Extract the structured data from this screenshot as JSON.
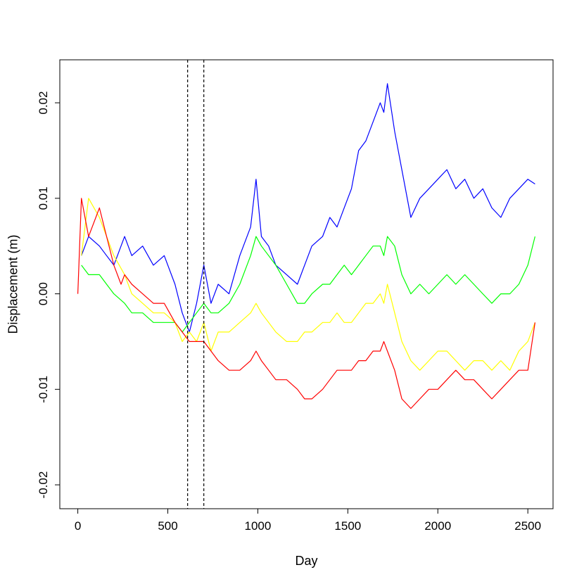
{
  "chart_data": {
    "type": "line",
    "title": "",
    "xlabel": "Day",
    "ylabel": "Displacement (m)",
    "xlim": [
      -100,
      2640
    ],
    "ylim": [
      -0.0225,
      0.0245
    ],
    "x_ticks": [
      {
        "value": 0,
        "label": "0"
      },
      {
        "value": 500,
        "label": "500"
      },
      {
        "value": 1000,
        "label": "1000"
      },
      {
        "value": 1500,
        "label": "1500"
      },
      {
        "value": 2000,
        "label": "2000"
      },
      {
        "value": 2500,
        "label": "2500"
      }
    ],
    "y_ticks": [
      {
        "value": -0.02,
        "label": "-0.02"
      },
      {
        "value": -0.01,
        "label": "-0.01"
      },
      {
        "value": 0.0,
        "label": "0.00"
      },
      {
        "value": 0.01,
        "label": "0.01"
      },
      {
        "value": 0.02,
        "label": "0.02"
      }
    ],
    "grid": false,
    "legend": "none",
    "vlines": [
      {
        "x": 610,
        "style": "dashed",
        "color": "#000000"
      },
      {
        "x": 700,
        "style": "dashed",
        "color": "#000000"
      }
    ],
    "series": [
      {
        "color": "#0000ff",
        "x": [
          20,
          60,
          120,
          160,
          200,
          260,
          300,
          360,
          420,
          480,
          540,
          580,
          620,
          660,
          700,
          740,
          780,
          840,
          900,
          960,
          990,
          1020,
          1060,
          1100,
          1160,
          1220,
          1260,
          1300,
          1360,
          1400,
          1440,
          1480,
          1520,
          1560,
          1600,
          1640,
          1680,
          1700,
          1720,
          1760,
          1800,
          1850,
          1900,
          1950,
          2000,
          2050,
          2100,
          2150,
          2200,
          2250,
          2300,
          2350,
          2400,
          2450,
          2500,
          2540
        ],
        "y": [
          0.004,
          0.006,
          0.005,
          0.004,
          0.003,
          0.006,
          0.004,
          0.005,
          0.003,
          0.004,
          0.001,
          -0.002,
          -0.004,
          -0.001,
          0.003,
          -0.001,
          0.001,
          0.0,
          0.004,
          0.007,
          0.012,
          0.006,
          0.005,
          0.003,
          0.002,
          0.001,
          0.003,
          0.005,
          0.006,
          0.008,
          0.007,
          0.009,
          0.011,
          0.015,
          0.016,
          0.018,
          0.02,
          0.019,
          0.022,
          0.017,
          0.013,
          0.008,
          0.01,
          0.011,
          0.012,
          0.013,
          0.011,
          0.012,
          0.01,
          0.011,
          0.009,
          0.008,
          0.01,
          0.011,
          0.012,
          0.0115
        ]
      },
      {
        "color": "#00ff00",
        "x": [
          20,
          60,
          120,
          160,
          200,
          260,
          300,
          360,
          420,
          480,
          540,
          580,
          620,
          660,
          700,
          740,
          780,
          840,
          900,
          960,
          990,
          1020,
          1060,
          1100,
          1160,
          1220,
          1260,
          1300,
          1360,
          1400,
          1440,
          1480,
          1520,
          1560,
          1600,
          1640,
          1680,
          1700,
          1720,
          1760,
          1800,
          1850,
          1900,
          1950,
          2000,
          2050,
          2100,
          2150,
          2200,
          2250,
          2300,
          2350,
          2400,
          2450,
          2500,
          2540
        ],
        "y": [
          0.003,
          0.002,
          0.002,
          0.001,
          0.0,
          -0.001,
          -0.002,
          -0.002,
          -0.003,
          -0.003,
          -0.003,
          -0.004,
          -0.003,
          -0.002,
          -0.001,
          -0.002,
          -0.002,
          -0.001,
          0.001,
          0.004,
          0.006,
          0.005,
          0.004,
          0.003,
          0.001,
          -0.001,
          -0.001,
          0.0,
          0.001,
          0.001,
          0.002,
          0.003,
          0.002,
          0.003,
          0.004,
          0.005,
          0.005,
          0.004,
          0.006,
          0.005,
          0.002,
          0.0,
          0.001,
          0.0,
          0.001,
          0.002,
          0.001,
          0.002,
          0.001,
          0.0,
          -0.001,
          0.0,
          0.0,
          0.001,
          0.003,
          0.006
        ]
      },
      {
        "color": "#ffff00",
        "x": [
          20,
          60,
          120,
          160,
          200,
          260,
          300,
          360,
          420,
          480,
          540,
          580,
          620,
          660,
          700,
          740,
          780,
          840,
          900,
          960,
          990,
          1020,
          1060,
          1100,
          1160,
          1220,
          1260,
          1300,
          1360,
          1400,
          1440,
          1480,
          1520,
          1560,
          1600,
          1640,
          1680,
          1700,
          1720,
          1760,
          1800,
          1850,
          1900,
          1950,
          2000,
          2050,
          2100,
          2150,
          2200,
          2250,
          2300,
          2350,
          2400,
          2450,
          2500,
          2540
        ],
        "y": [
          0.004,
          0.01,
          0.008,
          0.006,
          0.004,
          0.002,
          0.0,
          -0.001,
          -0.002,
          -0.002,
          -0.003,
          -0.005,
          -0.004,
          -0.005,
          -0.003,
          -0.006,
          -0.004,
          -0.004,
          -0.003,
          -0.002,
          -0.001,
          -0.002,
          -0.003,
          -0.004,
          -0.005,
          -0.005,
          -0.004,
          -0.004,
          -0.003,
          -0.003,
          -0.002,
          -0.003,
          -0.003,
          -0.002,
          -0.001,
          -0.001,
          0.0,
          -0.001,
          0.001,
          -0.002,
          -0.005,
          -0.007,
          -0.008,
          -0.007,
          -0.006,
          -0.006,
          -0.007,
          -0.008,
          -0.007,
          -0.007,
          -0.008,
          -0.007,
          -0.008,
          -0.006,
          -0.005,
          -0.003
        ]
      },
      {
        "color": "#ff0000",
        "x": [
          0,
          20,
          40,
          60,
          100,
          120,
          160,
          200,
          240,
          260,
          300,
          360,
          420,
          480,
          540,
          580,
          620,
          660,
          700,
          740,
          780,
          840,
          900,
          960,
          990,
          1020,
          1060,
          1100,
          1160,
          1220,
          1260,
          1300,
          1360,
          1400,
          1440,
          1480,
          1520,
          1560,
          1600,
          1640,
          1680,
          1700,
          1720,
          1760,
          1800,
          1850,
          1900,
          1950,
          2000,
          2050,
          2100,
          2150,
          2200,
          2250,
          2300,
          2350,
          2400,
          2450,
          2500,
          2540
        ],
        "y": [
          0.0,
          0.01,
          0.008,
          0.006,
          0.008,
          0.009,
          0.006,
          0.003,
          0.001,
          0.002,
          0.001,
          0.0,
          -0.001,
          -0.001,
          -0.003,
          -0.004,
          -0.005,
          -0.005,
          -0.005,
          -0.006,
          -0.007,
          -0.008,
          -0.008,
          -0.007,
          -0.006,
          -0.007,
          -0.008,
          -0.009,
          -0.009,
          -0.01,
          -0.011,
          -0.011,
          -0.01,
          -0.009,
          -0.008,
          -0.008,
          -0.008,
          -0.007,
          -0.007,
          -0.006,
          -0.006,
          -0.005,
          -0.006,
          -0.008,
          -0.011,
          -0.012,
          -0.011,
          -0.01,
          -0.01,
          -0.009,
          -0.008,
          -0.009,
          -0.009,
          -0.01,
          -0.011,
          -0.01,
          -0.009,
          -0.008,
          -0.008,
          -0.003
        ]
      }
    ]
  }
}
